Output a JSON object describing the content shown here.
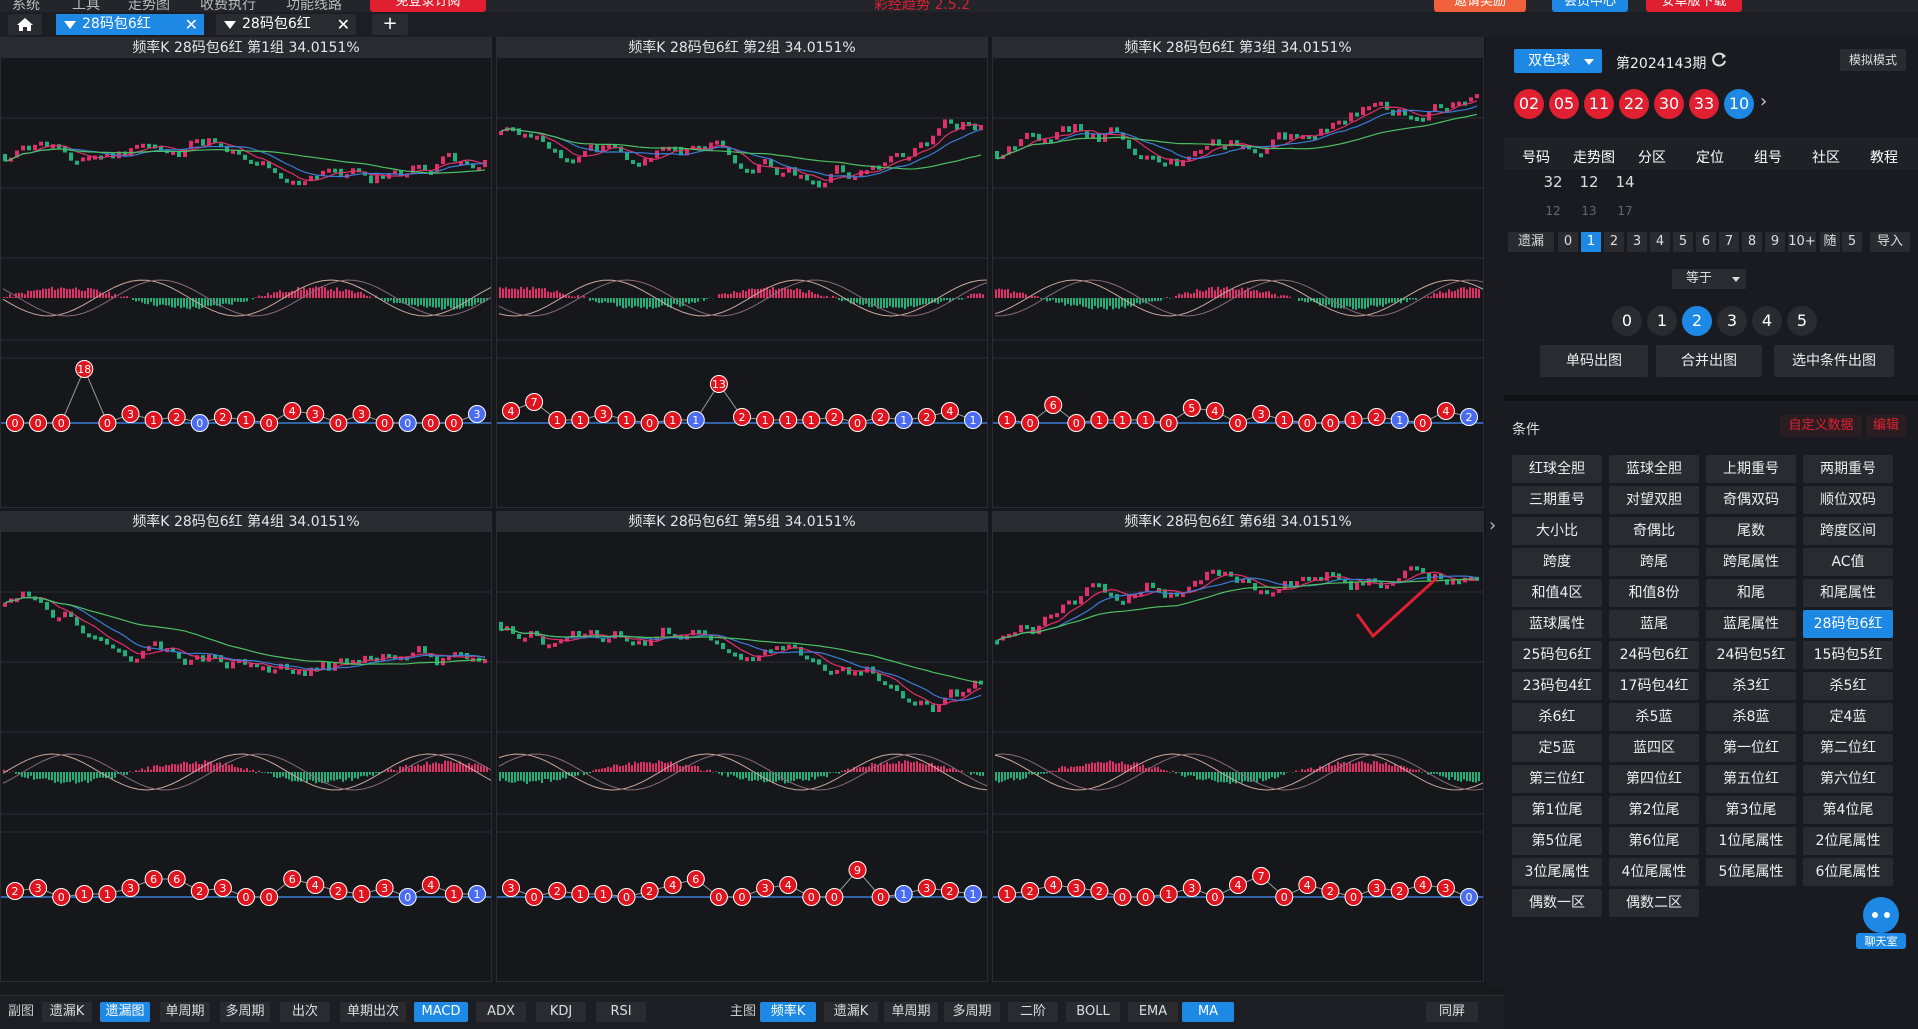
{
  "top": {
    "menu": [
      "系统",
      "工具",
      "走势图",
      "收费执行",
      "功能线路"
    ],
    "promo_button": "免登录订阅",
    "center_text": "彩经趋势 2.5.2",
    "btn_invite": "邀请奖励",
    "btn_member": "会员中心",
    "btn_download": "安卓版下载"
  },
  "tabs": [
    {
      "label": "28码包6红",
      "active": true
    },
    {
      "label": "28码包6红",
      "active": false
    }
  ],
  "panels": [
    {
      "title": "频率K  28码包6红  第1组  34.0151%"
    },
    {
      "title": "频率K  28码包6红  第2组  34.0151%"
    },
    {
      "title": "频率K  28码包6红  第3组  34.0151%"
    },
    {
      "title": "频率K  28码包6红  第4组  34.0151%"
    },
    {
      "title": "频率K  28码包6红  第5组  34.0151%"
    },
    {
      "title": "频率K  28码包6红  第6组  34.0151%"
    }
  ],
  "ball_rows": [
    [
      0,
      0,
      0,
      18,
      0,
      3,
      1,
      2,
      0,
      2,
      1,
      0,
      4,
      3,
      0,
      3,
      0,
      0,
      0,
      0,
      3
    ],
    [
      4,
      7,
      1,
      1,
      3,
      1,
      0,
      1,
      1,
      13,
      2,
      1,
      1,
      1,
      2,
      0,
      2,
      1,
      2,
      4,
      1
    ],
    [
      1,
      0,
      6,
      0,
      1,
      1,
      1,
      0,
      5,
      4,
      0,
      3,
      1,
      0,
      0,
      1,
      2,
      1,
      0,
      4,
      2
    ],
    [
      2,
      3,
      0,
      1,
      1,
      3,
      6,
      6,
      2,
      3,
      0,
      0,
      6,
      4,
      2,
      1,
      3,
      0,
      4,
      1,
      1
    ],
    [
      3,
      0,
      2,
      1,
      1,
      0,
      2,
      4,
      6,
      0,
      0,
      3,
      4,
      0,
      0,
      9,
      0,
      1,
      3,
      2,
      1
    ],
    [
      1,
      2,
      4,
      3,
      2,
      0,
      0,
      1,
      3,
      0,
      4,
      7,
      0,
      4,
      2,
      0,
      3,
      2,
      4,
      3,
      0
    ]
  ],
  "bottom": {
    "left_label": "副图",
    "left_buttons": [
      {
        "label": "遗漏K",
        "active": false
      },
      {
        "label": "遗漏图",
        "active": true
      },
      {
        "label": "单周期",
        "active": false
      },
      {
        "label": "多周期",
        "active": false
      },
      {
        "label": "出次",
        "active": false
      },
      {
        "label": "单期出次",
        "active": false
      },
      {
        "label": "MACD",
        "active": true
      },
      {
        "label": "ADX",
        "active": false
      },
      {
        "label": "KDJ",
        "active": false
      },
      {
        "label": "RSI",
        "active": false
      }
    ],
    "main_label": "主图",
    "main_buttons": [
      {
        "label": "频率K",
        "active": true
      },
      {
        "label": "遗漏K",
        "active": false
      },
      {
        "label": "单周期",
        "active": false
      },
      {
        "label": "多周期",
        "active": false
      },
      {
        "label": "二阶",
        "active": false
      },
      {
        "label": "BOLL",
        "active": false
      },
      {
        "label": "EMA",
        "active": false
      },
      {
        "label": "MA",
        "active": true
      }
    ],
    "sync_button": "同屏"
  },
  "sidebar": {
    "lottery": "双色球",
    "issue": "第2024143期",
    "mode": "模拟模式",
    "red_balls": [
      "02",
      "05",
      "11",
      "22",
      "30",
      "33"
    ],
    "blue_ball": "10",
    "tabs": [
      "号码",
      "走势图",
      "分区",
      "定位",
      "组号",
      "社区",
      "教程"
    ],
    "top_values": [
      "32",
      "12",
      "14"
    ],
    "sub_values": [
      "12",
      "13",
      "17"
    ],
    "miss_label": "遗漏",
    "miss_numbers": [
      "0",
      "1",
      "2",
      "3",
      "4",
      "5",
      "6",
      "7",
      "8",
      "9",
      "10+"
    ],
    "miss_active": "1",
    "random_label": "随",
    "random_value": "5",
    "import_label": "导入",
    "equal_label": "等于",
    "circle_values": [
      "0",
      "1",
      "2",
      "3",
      "4",
      "5"
    ],
    "circle_active": "2",
    "actions": [
      "单码出图",
      "合并出图",
      "选中条件出图"
    ],
    "condition_label": "条件",
    "custom_data": "自定义数据",
    "edit": "编辑",
    "conditions": [
      "红球全胆",
      "蓝球全胆",
      "上期重号",
      "两期重号",
      "三期重号",
      "对望双胆",
      "奇偶双码",
      "顺位双码",
      "大小比",
      "奇偶比",
      "尾数",
      "跨度区间",
      "跨度",
      "跨尾",
      "跨尾属性",
      "AC值",
      "和值4区",
      "和值8份",
      "和尾",
      "和尾属性",
      "蓝球属性",
      "蓝尾",
      "蓝尾属性",
      "28码包6红",
      "25码包6红",
      "24码包6红",
      "24码包5红",
      "15码包5红",
      "23码包4红",
      "17码包4红",
      "杀3红",
      "杀5红",
      "杀6红",
      "杀5蓝",
      "杀8蓝",
      "定4蓝",
      "定5蓝",
      "蓝四区",
      "第一位红",
      "第二位红",
      "第三位红",
      "第四位红",
      "第五位红",
      "第六位红",
      "第1位尾",
      "第2位尾",
      "第3位尾",
      "第4位尾",
      "第5位尾",
      "第6位尾",
      "1位尾属性",
      "2位尾属性",
      "3位尾属性",
      "4位尾属性",
      "5位尾属性",
      "6位尾属性",
      "偶数一区",
      "偶数二区"
    ],
    "condition_active": "28码包6红",
    "chat_label": "聊天室"
  }
}
